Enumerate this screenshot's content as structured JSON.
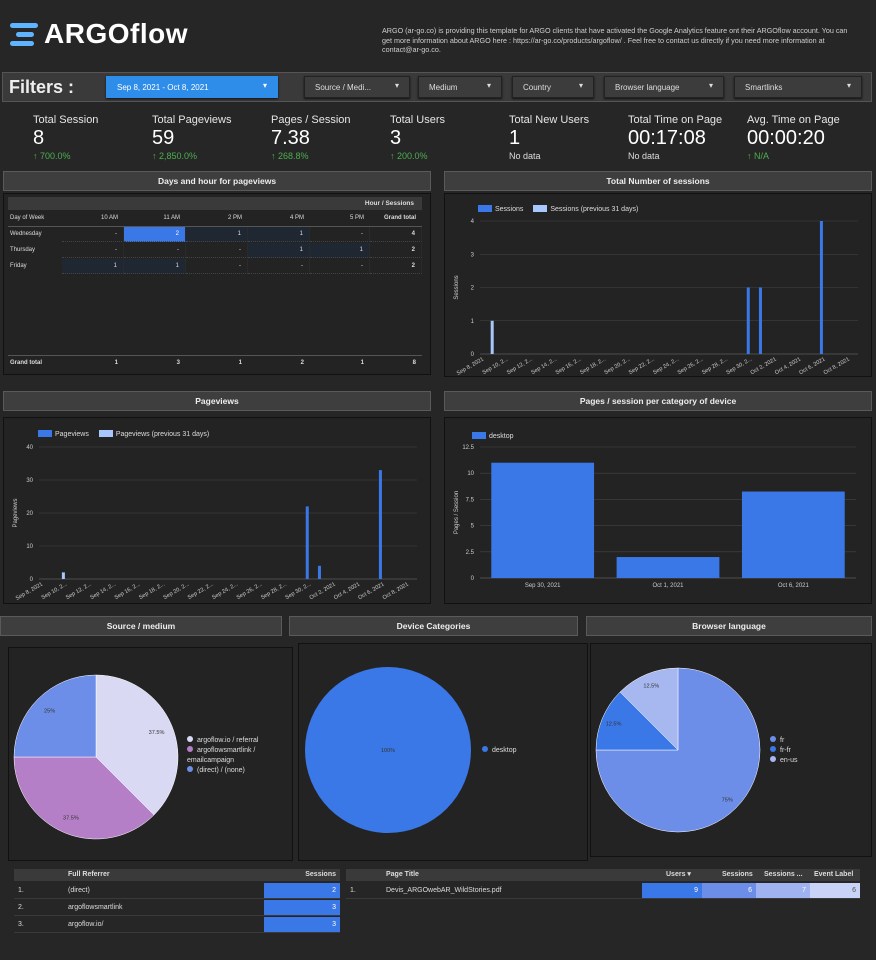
{
  "header": {
    "logo_text": "ARGOflow",
    "intro": "ARGO (ar-go.co) is providing this template for ARGO clients that have activated the Google Analytics feature ont their ARGOflow account. You can get more information about ARGO here : https://ar-go.co/products/argoflow/ . Feel free to contact us directly if you need more information at contact@ar-go.co."
  },
  "filters": {
    "label": "Filters :",
    "items": [
      "Sep 8, 2021 - Oct 8, 2021",
      "Source / Medi...",
      "Medium",
      "Country",
      "Browser language",
      "Smartlinks"
    ]
  },
  "kpis": [
    {
      "title": "Total Session",
      "value": "8",
      "delta": "↑ 700.0%"
    },
    {
      "title": "Total Pageviews",
      "value": "59",
      "delta": "↑ 2,850.0%"
    },
    {
      "title": "Pages / Session",
      "value": "7.38",
      "delta": "↑ 268.8%"
    },
    {
      "title": "Total Users",
      "value": "3",
      "delta": "↑ 200.0%"
    },
    {
      "title": "Total New Users",
      "value": "1",
      "delta": "No data"
    },
    {
      "title": "Total Time on Page",
      "value": "00:17:08",
      "delta": "No data"
    },
    {
      "title": "Avg. Time on Page",
      "value": "00:00:20",
      "delta": "↑ N/A"
    }
  ],
  "sections": {
    "days_hour": "Days and hour for pageviews",
    "total_sessions": "Total Number of sessions",
    "pageviews": "Pageviews",
    "pages_device": "Pages / session per category of device",
    "source_medium": "Source / medium",
    "device_categories": "Device Categories",
    "browser_language": "Browser language"
  },
  "heat_table": {
    "caption": "Hour / Sessions",
    "columns": [
      "Day of Week",
      "10 AM",
      "11 AM",
      "2 PM",
      "4 PM",
      "5 PM",
      "Grand total"
    ],
    "rows": [
      {
        "day": "Wednesday",
        "cells": [
          "-",
          "2",
          "1",
          "1",
          "-",
          "4"
        ]
      },
      {
        "day": "Thursday",
        "cells": [
          "-",
          "-",
          "-",
          "1",
          "1",
          "2"
        ]
      },
      {
        "day": "Friday",
        "cells": [
          "1",
          "1",
          "-",
          "-",
          "-",
          "2"
        ]
      }
    ],
    "total": {
      "day": "Grand total",
      "cells": [
        "1",
        "3",
        "1",
        "2",
        "1",
        "8"
      ]
    }
  },
  "colors": {
    "primary": "#3b78e7",
    "previous": "#a8c7fa",
    "lavender": "#d9d9f3",
    "purple": "#b57fc8",
    "periwinkle": "#6d8ee8",
    "green": "#4caf50"
  },
  "chart_data": [
    {
      "type": "bar",
      "ylabel": "Sessions",
      "ylim": [
        0,
        4
      ],
      "yticks": [
        0,
        1,
        2,
        3,
        4
      ],
      "tick_labels": [
        "Sep 8, 2021",
        "Sep 10, 2...",
        "Sep 12, 2...",
        "Sep 14, 2...",
        "Sep 16, 2...",
        "Sep 18, 2...",
        "Sep 20, 2...",
        "Sep 22, 2...",
        "Sep 24, 2...",
        "Sep 26, 2...",
        "Sep 28, 2...",
        "Sep 30, 2...",
        "Oct 2, 2021",
        "Oct 4, 2021",
        "Oct 6, 2021",
        "Oct 8, 2021"
      ],
      "series": [
        {
          "name": "Sessions",
          "points": [
            {
              "day": 22,
              "value": 2
            },
            {
              "day": 23,
              "value": 2
            },
            {
              "day": 28,
              "value": 4
            }
          ]
        },
        {
          "name": "Sessions (previous 31 days)",
          "points": [
            {
              "day": 1,
              "value": 1
            }
          ]
        }
      ]
    },
    {
      "type": "bar",
      "ylabel": "Pageviews",
      "ylim": [
        0,
        40
      ],
      "yticks": [
        0,
        10,
        20,
        30,
        40
      ],
      "tick_labels": [
        "Sep 8, 2021",
        "Sep 10, 2...",
        "Sep 12, 2...",
        "Sep 14, 2...",
        "Sep 16, 2...",
        "Sep 18, 2...",
        "Sep 20, 2...",
        "Sep 22, 2...",
        "Sep 24, 2...",
        "Sep 26, 2...",
        "Sep 28, 2...",
        "Sep 30, 2...",
        "Oct 2, 2021",
        "Oct 4, 2021",
        "Oct 6, 2021",
        "Oct 8, 2021"
      ],
      "series": [
        {
          "name": "Pageviews",
          "points": [
            {
              "day": 22,
              "value": 22
            },
            {
              "day": 23,
              "value": 4
            },
            {
              "day": 28,
              "value": 33
            }
          ]
        },
        {
          "name": "Pageviews (previous 31 days)",
          "points": [
            {
              "day": 2,
              "value": 2
            }
          ]
        }
      ]
    },
    {
      "type": "bar",
      "ylabel": "Pages / Session",
      "ylim": [
        0,
        12.5
      ],
      "yticks": [
        0,
        2.5,
        5,
        7.5,
        10,
        12.5
      ],
      "categories": [
        "Sep 30, 2021",
        "Oct 1, 2021",
        "Oct 6, 2021"
      ],
      "series": [
        {
          "name": "desktop",
          "values": [
            11,
            2,
            8.25
          ]
        }
      ]
    },
    {
      "type": "pie",
      "slices": [
        {
          "label": "argoflow.io / referral",
          "value": 37.5,
          "text": "37.5%"
        },
        {
          "label": "argoflowsmartlink / emailcampaign",
          "value": 37.5,
          "text": "37.5%"
        },
        {
          "label": "(direct) / (none)",
          "value": 25,
          "text": "25%"
        }
      ]
    },
    {
      "type": "pie",
      "slices": [
        {
          "label": "desktop",
          "value": 100,
          "text": "100%"
        }
      ]
    },
    {
      "type": "pie",
      "slices": [
        {
          "label": "fr",
          "value": 75,
          "text": "75%"
        },
        {
          "label": "fr-fr",
          "value": 12.5,
          "text": "12.5%"
        },
        {
          "label": "en-us",
          "value": 12.5,
          "text": "12.5%"
        }
      ]
    }
  ],
  "referrer_table": {
    "columns": [
      "Full Referrer",
      "Sessions"
    ],
    "rows": [
      {
        "idx": "1.",
        "name": "(direct)",
        "sessions": "2"
      },
      {
        "idx": "2.",
        "name": "argoflowsmartlink",
        "sessions": "3"
      },
      {
        "idx": "3.",
        "name": "argoflow.io/",
        "sessions": "3"
      }
    ]
  },
  "page_table": {
    "columns": [
      "Page Title",
      "Users ▾",
      "Sessions",
      "Sessions ...",
      "Event Label"
    ],
    "rows": [
      {
        "idx": "1.",
        "title": "Devis_ARGOwebAR_WildStories.pdf",
        "users": "9",
        "sessions": "6",
        "sessions2": "7",
        "event": "6"
      }
    ]
  }
}
